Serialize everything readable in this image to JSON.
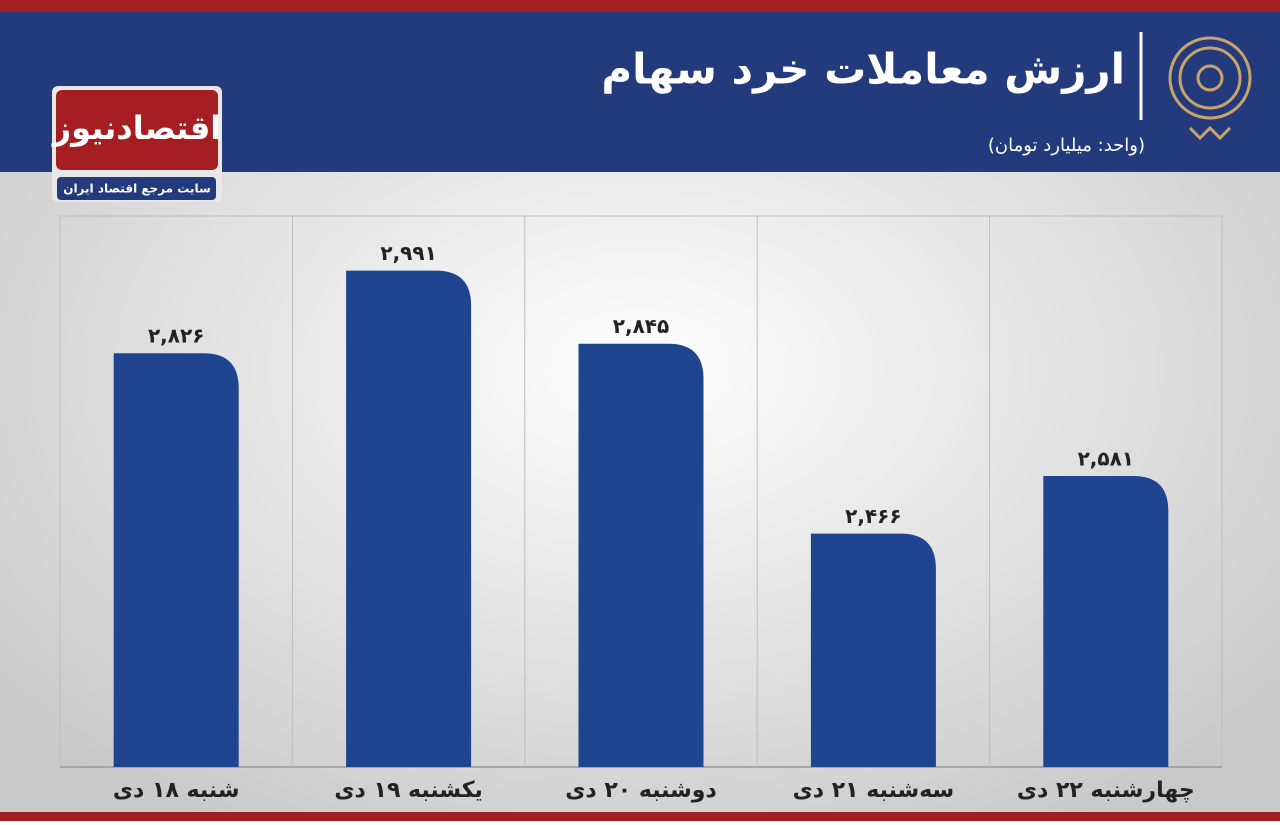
{
  "chart_data": {
    "type": "bar",
    "title": "ارزش معاملات خرد سهام",
    "subtitle": "(واحد: میلیارد تومان)",
    "source": "اقتصادنیوز",
    "source_tagline": "سایت مرجع اقتصاد ایران",
    "categories": [
      "شنبه ۱۸ دی",
      "یکشنبه ۱۹ دی",
      "دوشنبه ۲۰ دی",
      "سه‌شنبه ۲۱ دی",
      "چهارشنبه ۲۲ دی"
    ],
    "values": [
      2826,
      2991,
      2845,
      2466,
      2581
    ],
    "value_labels": [
      "۲,۸۲۶",
      "۲,۹۹۱",
      "۲,۸۴۵",
      "۲,۴۶۶",
      "۲,۵۸۱"
    ],
    "color": "#1f4590",
    "ylim": [
      2000,
      3100
    ]
  }
}
